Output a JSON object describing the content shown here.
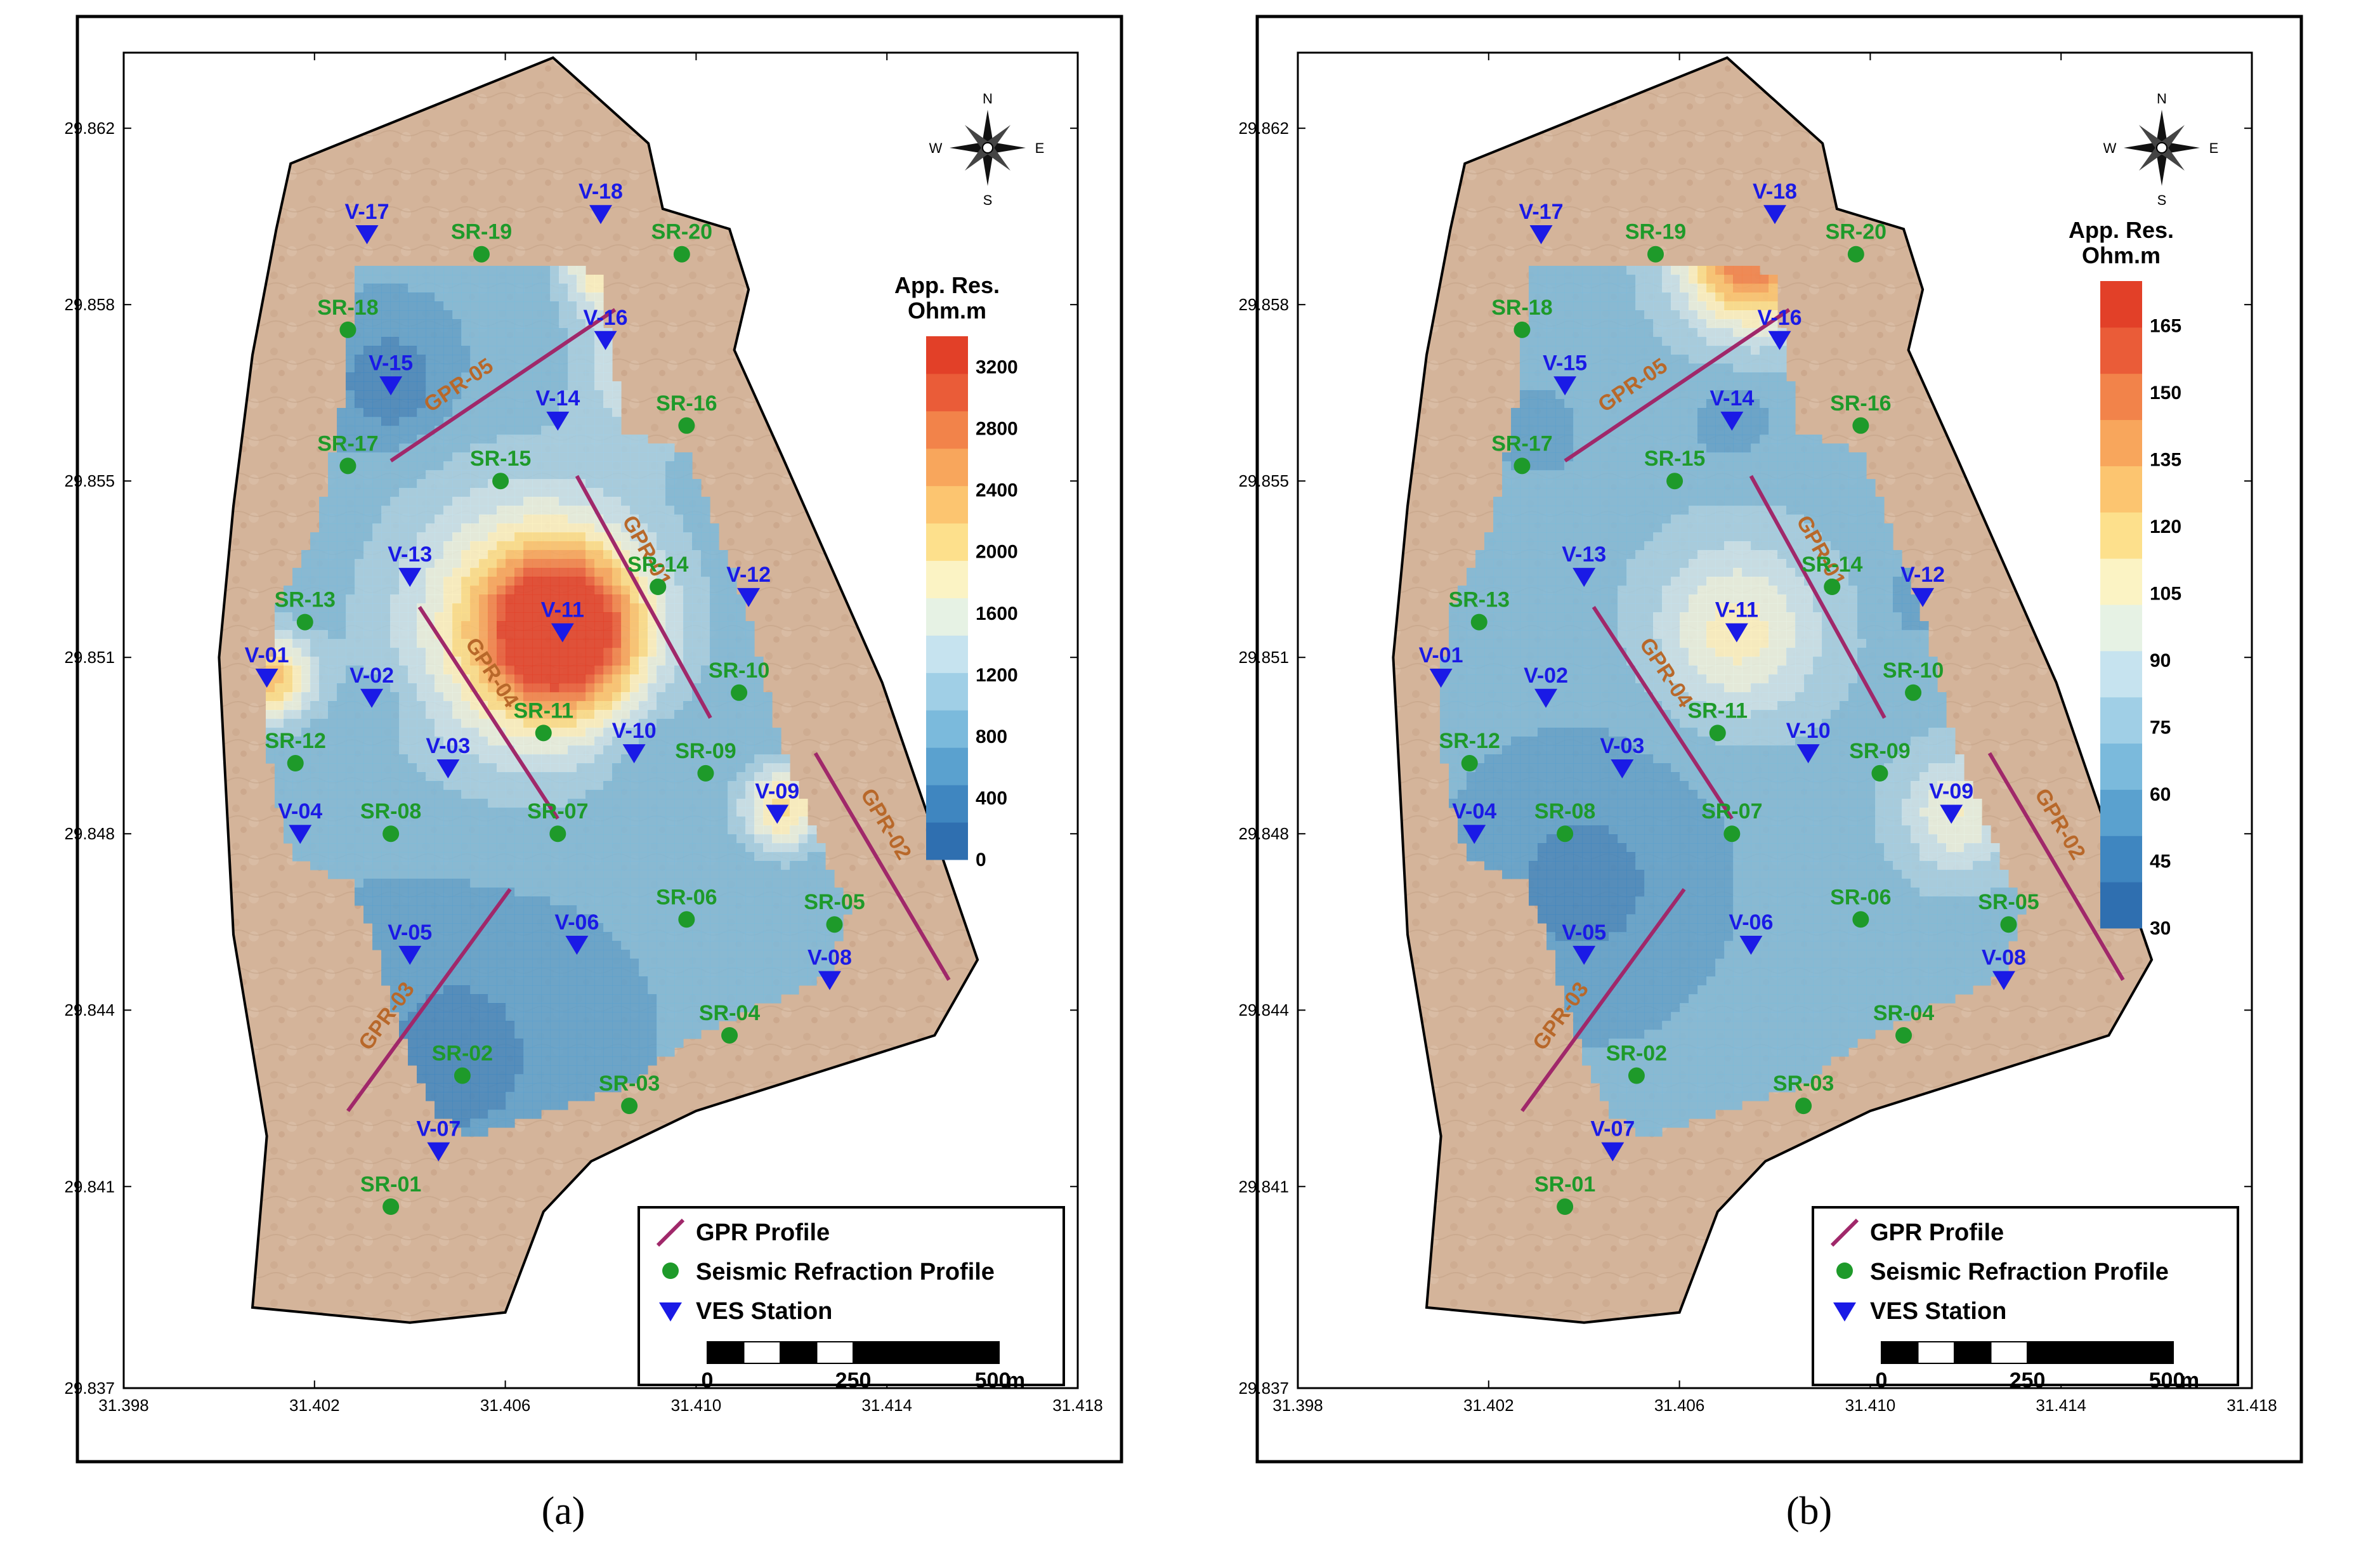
{
  "axes": {
    "y_ticks": [
      "29.862",
      "29.858",
      "29.855",
      "29.851",
      "29.848",
      "29.844",
      "29.841",
      "29.837"
    ],
    "x_ticks": [
      "31.398",
      "31.402",
      "31.406",
      "31.410",
      "31.414",
      "31.418"
    ]
  },
  "compass": {
    "n": "N",
    "s": "S",
    "e": "E",
    "w": "W"
  },
  "legend": {
    "gpr": "GPR Profile",
    "seismic": "Seismic Refraction Profile",
    "ves": "VES Station"
  },
  "scale_bar": {
    "ticks": [
      "0",
      "250",
      "500"
    ],
    "unit": "m"
  },
  "colors": {
    "site_fill": "#d9b9a0",
    "ves_marker": "#1a1ae6",
    "seismic_marker": "#1e9a2a",
    "gpr_line": "#a0286a",
    "low": "#2a6fb5",
    "high": "#e84424"
  },
  "seismic_points": [
    {
      "id": "SR-01",
      "x": 31.4036,
      "y": 29.8406
    },
    {
      "id": "SR-02",
      "x": 31.4051,
      "y": 29.8432
    },
    {
      "id": "SR-03",
      "x": 31.4086,
      "y": 29.8426
    },
    {
      "id": "SR-04",
      "x": 31.4107,
      "y": 29.844
    },
    {
      "id": "SR-05",
      "x": 31.4129,
      "y": 29.8462
    },
    {
      "id": "SR-06",
      "x": 31.4098,
      "y": 29.8463
    },
    {
      "id": "SR-07",
      "x": 31.4071,
      "y": 29.848
    },
    {
      "id": "SR-08",
      "x": 31.4036,
      "y": 29.848
    },
    {
      "id": "SR-09",
      "x": 31.4102,
      "y": 29.8492
    },
    {
      "id": "SR-10",
      "x": 31.4109,
      "y": 29.8508
    },
    {
      "id": "SR-11",
      "x": 31.4068,
      "y": 29.85
    },
    {
      "id": "SR-12",
      "x": 31.4016,
      "y": 29.8494
    },
    {
      "id": "SR-13",
      "x": 31.4018,
      "y": 29.8522
    },
    {
      "id": "SR-14",
      "x": 31.4092,
      "y": 29.8529
    },
    {
      "id": "SR-15",
      "x": 31.4059,
      "y": 29.855
    },
    {
      "id": "SR-16",
      "x": 31.4098,
      "y": 29.8561
    },
    {
      "id": "SR-17",
      "x": 31.4027,
      "y": 29.8553
    },
    {
      "id": "SR-18",
      "x": 31.4027,
      "y": 29.858
    },
    {
      "id": "SR-19",
      "x": 31.4055,
      "y": 29.8595
    },
    {
      "id": "SR-20",
      "x": 31.4097,
      "y": 29.8595
    }
  ],
  "ves_points": [
    {
      "id": "V-01",
      "x": 31.401,
      "y": 29.8511
    },
    {
      "id": "V-02",
      "x": 31.4032,
      "y": 29.8507
    },
    {
      "id": "V-03",
      "x": 31.4048,
      "y": 29.8493
    },
    {
      "id": "V-04",
      "x": 31.4017,
      "y": 29.848
    },
    {
      "id": "V-05",
      "x": 31.404,
      "y": 29.8456
    },
    {
      "id": "V-06",
      "x": 31.4075,
      "y": 29.8458
    },
    {
      "id": "V-07",
      "x": 31.4046,
      "y": 29.8417
    },
    {
      "id": "V-08",
      "x": 31.4128,
      "y": 29.8451
    },
    {
      "id": "V-09",
      "x": 31.4117,
      "y": 29.8484
    },
    {
      "id": "V-10",
      "x": 31.4087,
      "y": 29.8496
    },
    {
      "id": "V-11",
      "x": 31.4072,
      "y": 29.852
    },
    {
      "id": "V-12",
      "x": 31.4111,
      "y": 29.8527
    },
    {
      "id": "V-13",
      "x": 31.404,
      "y": 29.8531
    },
    {
      "id": "V-14",
      "x": 31.4071,
      "y": 29.8562
    },
    {
      "id": "V-15",
      "x": 31.4036,
      "y": 29.8569
    },
    {
      "id": "V-16",
      "x": 31.4081,
      "y": 29.8578
    },
    {
      "id": "V-17",
      "x": 31.4031,
      "y": 29.8599
    },
    {
      "id": "V-18",
      "x": 31.408,
      "y": 29.8603
    }
  ],
  "gpr_profiles": [
    {
      "id": "GPR-01",
      "x1": 31.4075,
      "y1": 29.8551,
      "x2": 31.4103,
      "y2": 29.8503
    },
    {
      "id": "GPR-02",
      "x1": 31.4125,
      "y1": 29.8496,
      "x2": 31.4153,
      "y2": 29.8451
    },
    {
      "id": "GPR-03",
      "x1": 31.4027,
      "y1": 29.8425,
      "x2": 31.4061,
      "y2": 29.8469
    },
    {
      "id": "GPR-04",
      "x1": 31.4042,
      "y1": 29.8525,
      "x2": 31.4071,
      "y2": 29.8483
    },
    {
      "id": "GPR-05",
      "x1": 31.4036,
      "y1": 29.8554,
      "x2": 31.4083,
      "y2": 29.8584
    }
  ],
  "site_boundary": [
    [
      31.4015,
      29.8613
    ],
    [
      31.407,
      29.8634
    ],
    [
      31.409,
      29.8617
    ],
    [
      31.4093,
      29.8604
    ],
    [
      31.4107,
      29.86
    ],
    [
      31.4111,
      29.8588
    ],
    [
      31.4108,
      29.8576
    ],
    [
      31.4118,
      29.8555
    ],
    [
      31.4139,
      29.851
    ],
    [
      31.4159,
      29.8455
    ],
    [
      31.415,
      29.844
    ],
    [
      31.41,
      29.8425
    ],
    [
      31.4078,
      29.8415
    ],
    [
      31.4068,
      29.8405
    ],
    [
      31.406,
      29.8385
    ],
    [
      31.404,
      29.8383
    ],
    [
      31.4007,
      29.8386
    ],
    [
      31.401,
      29.842
    ],
    [
      31.4003,
      29.846
    ],
    [
      31.4,
      29.8515
    ],
    [
      31.4003,
      29.8545
    ],
    [
      31.4007,
      29.8575
    ],
    [
      31.4012,
      29.86
    ]
  ],
  "contour_boundary": [
    [
      31.4029,
      29.8593
    ],
    [
      31.4075,
      29.8593
    ],
    [
      31.408,
      29.859
    ],
    [
      31.4085,
      29.856
    ],
    [
      31.4098,
      29.8556
    ],
    [
      31.4106,
      29.8536
    ],
    [
      31.411,
      29.8526
    ],
    [
      31.4117,
      29.85
    ],
    [
      31.4125,
      29.848
    ],
    [
      31.4132,
      29.8465
    ],
    [
      31.4128,
      29.8452
    ],
    [
      31.41,
      29.844
    ],
    [
      31.4085,
      29.843
    ],
    [
      31.4072,
      29.8426
    ],
    [
      31.406,
      29.8422
    ],
    [
      31.4052,
      29.842
    ],
    [
      31.4045,
      29.8425
    ],
    [
      31.4038,
      29.844
    ],
    [
      31.4032,
      29.846
    ],
    [
      31.4028,
      29.847
    ],
    [
      31.4015,
      29.8476
    ],
    [
      31.4009,
      29.85
    ],
    [
      31.4012,
      29.8525
    ],
    [
      31.402,
      29.854
    ],
    [
      31.4025,
      29.856
    ]
  ],
  "panels": [
    {
      "caption": "(a)",
      "colorbar_title_1": "App.  Res.",
      "colorbar_title_2": "Ohm.m",
      "colorbar_ticks": [
        "0",
        "400",
        "800",
        "1200",
        "1600",
        "2000",
        "2400",
        "2800",
        "3200"
      ],
      "colorbar_min": 0,
      "colorbar_max": 3400,
      "colorbar_colors": [
        "#2f6fb0",
        "#3f86c0",
        "#5aa1cf",
        "#7bbadc",
        "#a0cfe6",
        "#c6e3ef",
        "#e6f2e4",
        "#fbf3c4",
        "#fde08c",
        "#fcc570",
        "#f8a65c",
        "#f2834a",
        "#ea5c38",
        "#e24028"
      ],
      "anomalies": [
        {
          "x": 31.4072,
          "y": 29.852,
          "value": 2500,
          "spread": 0.0011
        },
        {
          "x": 31.4064,
          "y": 29.8522,
          "value": 1200,
          "spread": 0.002
        },
        {
          "x": 31.4011,
          "y": 29.8511,
          "value": 1500,
          "spread": 0.0006
        },
        {
          "x": 31.4118,
          "y": 29.8485,
          "value": 1300,
          "spread": 0.0006
        },
        {
          "x": 31.408,
          "y": 29.8592,
          "value": 1100,
          "spread": 0.0006
        },
        {
          "x": 31.409,
          "y": 29.8573,
          "value": 800,
          "spread": 0.001
        },
        {
          "x": 31.4036,
          "y": 29.8569,
          "value": -500,
          "spread": 0.0008
        },
        {
          "x": 31.405,
          "y": 29.8436,
          "value": -350,
          "spread": 0.0018
        },
        {
          "x": 31.409,
          "y": 29.8497,
          "value": -200,
          "spread": 0.0008
        },
        {
          "x": 31.4036,
          "y": 29.8507,
          "value": -150,
          "spread": 0.0005
        }
      ],
      "base_value": 750
    },
    {
      "caption": "(b)",
      "colorbar_title_1": "App.  Res.",
      "colorbar_title_2": "Ohm.m",
      "colorbar_ticks": [
        "30",
        "45",
        "60",
        "75",
        "90",
        "105",
        "120",
        "135",
        "150",
        "165"
      ],
      "colorbar_min": 30,
      "colorbar_max": 175,
      "colorbar_colors": [
        "#2f6fb0",
        "#3f86c0",
        "#5aa1cf",
        "#7bbadc",
        "#a0cfe6",
        "#c6e3ef",
        "#e6f2e4",
        "#fbf3c4",
        "#fde08c",
        "#fcc570",
        "#f8a65c",
        "#f2834a",
        "#ea5c38",
        "#e24028"
      ],
      "anomalies": [
        {
          "x": 31.4072,
          "y": 29.852,
          "value": 40,
          "spread": 0.0012
        },
        {
          "x": 31.4075,
          "y": 29.8595,
          "value": 90,
          "spread": 0.001
        },
        {
          "x": 31.4118,
          "y": 29.8484,
          "value": 35,
          "spread": 0.0008
        },
        {
          "x": 31.404,
          "y": 29.847,
          "value": -20,
          "spread": 0.0022
        },
        {
          "x": 31.4071,
          "y": 29.8562,
          "value": -15,
          "spread": 0.0006
        },
        {
          "x": 31.4111,
          "y": 29.8527,
          "value": -18,
          "spread": 0.0005
        },
        {
          "x": 31.403,
          "y": 29.856,
          "value": -10,
          "spread": 0.001
        }
      ],
      "base_value": 68
    }
  ]
}
